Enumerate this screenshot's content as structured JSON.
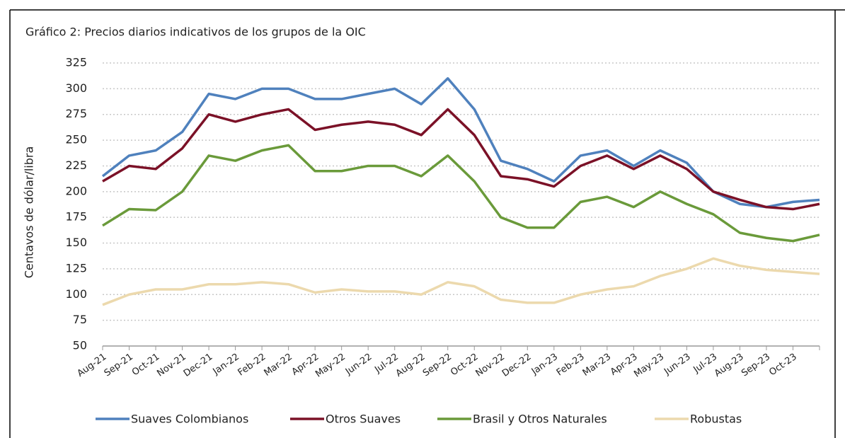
{
  "chart_data": {
    "type": "line",
    "title": "Gráfico 2: Precios diarios indicativos de los grupos de la OIC",
    "y_label": "Centavos de dólar/libra",
    "categories": [
      "Aug-21",
      "Sep-21",
      "Oct-21",
      "Nov-21",
      "Dec-21",
      "Jan-22",
      "Feb-22",
      "Mar-22",
      "Apr-22",
      "May-22",
      "Jun-22",
      "Jul-22",
      "Aug-22",
      "Sep-22",
      "Oct-22",
      "Nov-22",
      "Dec-22",
      "Jan-23",
      "Feb-23",
      "Mar-23",
      "Apr-23",
      "May-23",
      "Jun-23",
      "Jul-23",
      "Aug-23",
      "Sep-23",
      "Oct-23",
      null
    ],
    "series": [
      {
        "name": "Suaves Colombianos",
        "color": "#4f81bd",
        "values": [
          215,
          235,
          240,
          258,
          295,
          290,
          300,
          300,
          290,
          290,
          295,
          300,
          285,
          310,
          280,
          230,
          222,
          210,
          235,
          240,
          225,
          240,
          228,
          200,
          188,
          185,
          190,
          192
        ]
      },
      {
        "name": "Otros Suaves",
        "color": "#7b1127",
        "values": [
          210,
          225,
          222,
          242,
          275,
          268,
          275,
          280,
          260,
          265,
          268,
          265,
          255,
          280,
          255,
          215,
          212,
          205,
          225,
          235,
          222,
          235,
          222,
          200,
          192,
          185,
          183,
          188
        ]
      },
      {
        "name": "Brasil y Otros Naturales",
        "color": "#6a9a3a",
        "values": [
          167,
          183,
          182,
          200,
          235,
          230,
          240,
          245,
          220,
          220,
          225,
          225,
          215,
          235,
          210,
          175,
          165,
          165,
          190,
          195,
          185,
          200,
          188,
          178,
          160,
          155,
          152,
          158
        ]
      },
      {
        "name": "Robustas",
        "color": "#ecd9ad",
        "values": [
          90,
          100,
          105,
          105,
          110,
          110,
          112,
          110,
          102,
          105,
          103,
          103,
          100,
          112,
          108,
          95,
          92,
          92,
          100,
          105,
          108,
          118,
          125,
          135,
          128,
          124,
          122,
          120
        ]
      }
    ],
    "ylim": [
      50,
      325
    ],
    "yticks": [
      50,
      75,
      100,
      125,
      150,
      175,
      200,
      225,
      250,
      275,
      300,
      325
    ],
    "grid": true,
    "legend": "bottom"
  }
}
